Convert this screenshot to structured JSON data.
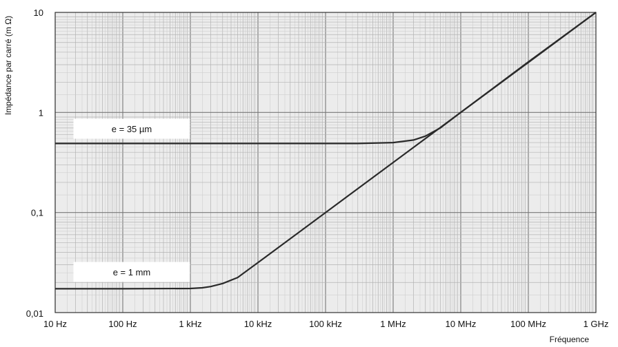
{
  "chart_data": {
    "type": "line",
    "xscale": "log",
    "yscale": "log",
    "xlim": [
      10,
      1000000000
    ],
    "ylim": [
      0.01,
      10
    ],
    "xlabel": "Fréquence",
    "ylabel": "Impédance par carré (m Ω)",
    "x_tick_labels": [
      "10 Hz",
      "100 Hz",
      "1 kHz",
      "10 kHz",
      "100 kHz",
      "1 MHz",
      "10 MHz",
      "100 MHz",
      "1 GHz"
    ],
    "y_tick_labels": [
      "0,01",
      "0,1",
      "1",
      "10"
    ],
    "grid": true,
    "series": [
      {
        "name": "e = 35 µm",
        "x": [
          10,
          100,
          1000,
          10000,
          100000,
          300000,
          1000000,
          2000000,
          3000000,
          5000000,
          10000000,
          100000000,
          1000000000
        ],
        "values": [
          0.49,
          0.49,
          0.49,
          0.49,
          0.49,
          0.49,
          0.5,
          0.53,
          0.58,
          0.7,
          1.0,
          3.2,
          10
        ]
      },
      {
        "name": "e = 1 mm",
        "x": [
          10,
          100,
          1000,
          1500,
          2000,
          3000,
          5000,
          10000,
          100000,
          1000000,
          10000000,
          100000000,
          1000000000
        ],
        "values": [
          0.0173,
          0.0173,
          0.0174,
          0.0177,
          0.0182,
          0.0195,
          0.0224,
          0.0316,
          0.1,
          0.316,
          1.0,
          3.16,
          10
        ]
      }
    ]
  }
}
